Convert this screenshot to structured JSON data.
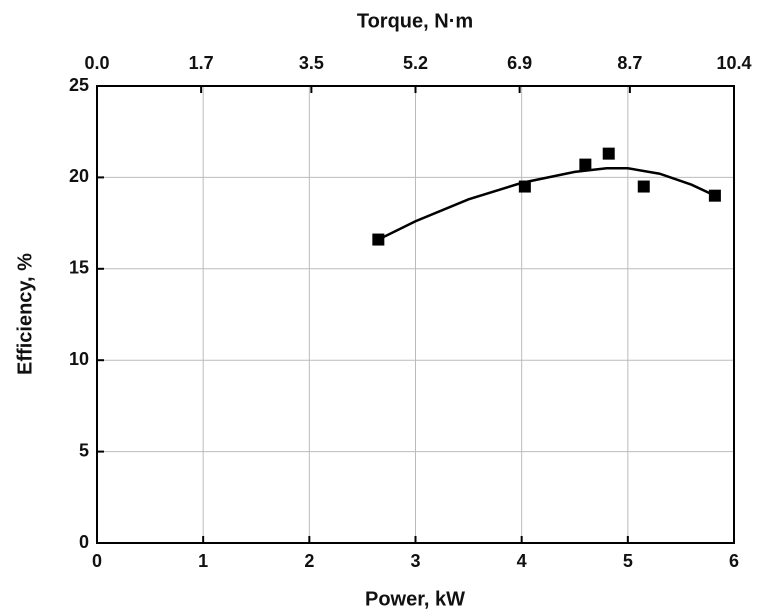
{
  "chart_data": {
    "type": "scatter",
    "xlabel": "Power, kW",
    "ylabel": "Efficiency, %",
    "x2label": "Torque, N·m",
    "xlim": [
      0,
      6
    ],
    "xticks": [
      0,
      1,
      2,
      3,
      4,
      5,
      6
    ],
    "x2lim": [
      0,
      10.4
    ],
    "x2ticks": [
      {
        "value": 0,
        "label": "0.0"
      },
      1.7,
      3.5,
      5.2,
      6.9,
      8.7,
      10.4
    ],
    "ylim": [
      0,
      25
    ],
    "yticks": [
      0,
      5,
      10,
      15,
      20,
      25
    ],
    "grid": true,
    "series": [
      {
        "color": "#000000",
        "marker": "square",
        "x": [
          2.65,
          4.03,
          4.6,
          4.82,
          5.15,
          5.82
        ],
        "values": [
          16.6,
          19.5,
          20.7,
          21.3,
          19.5,
          19.0
        ]
      },
      {
        "color": "#000000",
        "line": true,
        "x": [
          2.65,
          3.0,
          3.5,
          4.0,
          4.5,
          4.8,
          5.0,
          5.3,
          5.6,
          5.82
        ],
        "values": [
          16.6,
          17.6,
          18.8,
          19.7,
          20.3,
          20.5,
          20.5,
          20.2,
          19.6,
          19.0
        ]
      }
    ]
  }
}
